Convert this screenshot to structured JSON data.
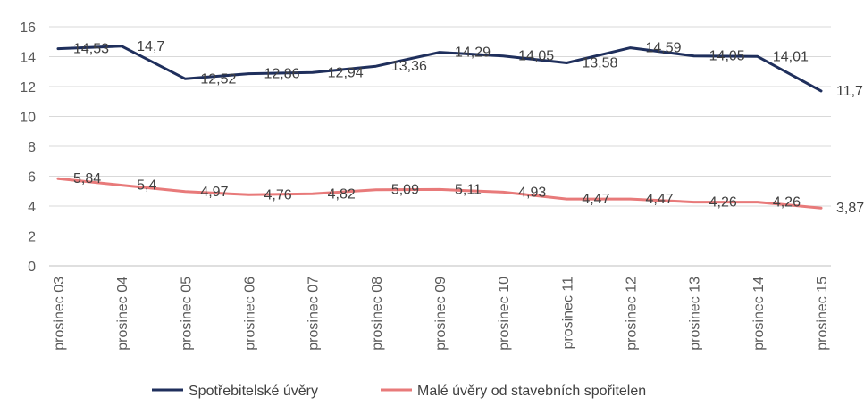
{
  "chart_data": {
    "type": "line",
    "title": "",
    "xlabel": "",
    "ylabel": "",
    "ylim": [
      0,
      16
    ],
    "yticks": [
      0,
      2,
      4,
      6,
      8,
      10,
      12,
      14,
      16
    ],
    "grid": true,
    "legend_position": "bottom",
    "categories": [
      "prosinec 03",
      "prosinec 04",
      "prosinec 05",
      "prosinec 06",
      "prosinec 07",
      "prosinec 08",
      "prosinec 09",
      "prosinec 10",
      "prosinec 11",
      "prosinec 12",
      "prosinec 13",
      "prosinec 14",
      "prosinec 15"
    ],
    "series": [
      {
        "name": "Spotřebitelské úvěry",
        "color": "#1f2f5c",
        "values": [
          14.53,
          14.7,
          12.52,
          12.86,
          12.94,
          13.36,
          14.29,
          14.05,
          13.58,
          14.59,
          14.05,
          14.01,
          11.71
        ],
        "labels": [
          "14,53",
          "14,7",
          "12,52",
          "12,86",
          "12,94",
          "13,36",
          "14,29",
          "14,05",
          "13,58",
          "14,59",
          "14,05",
          "14,01",
          "11,71"
        ]
      },
      {
        "name": "Malé úvěry od stavebních spořitelen",
        "color": "#e87a7a",
        "values": [
          5.84,
          5.4,
          4.97,
          4.76,
          4.82,
          5.09,
          5.11,
          4.93,
          4.47,
          4.47,
          4.26,
          4.26,
          3.87
        ],
        "labels": [
          "5,84",
          "5,4",
          "4,97",
          "4,76",
          "4,82",
          "5,09",
          "5,11",
          "4,93",
          "4,47",
          "4,47",
          "4,26",
          "4,26",
          "3,87"
        ]
      }
    ]
  }
}
